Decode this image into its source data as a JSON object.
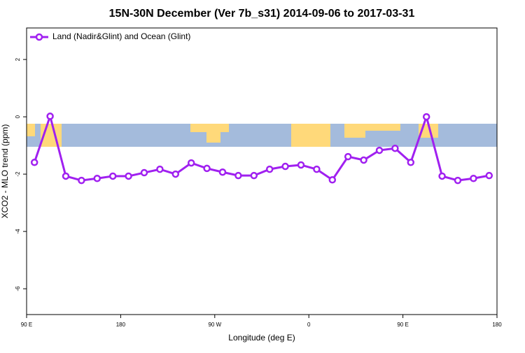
{
  "chart_data": {
    "type": "line",
    "title": "15N-30N December (Ver 7b_s31)   2014-09-06 to 2017-03-31",
    "x_label": "Longitude (deg E)",
    "y_label": "XCO2 - MLO trend (ppm)",
    "x": [
      97.5,
      112.5,
      127.5,
      142.5,
      157.5,
      172.5,
      187.5,
      202.5,
      217.5,
      232.5,
      247.5,
      262.5,
      277.5,
      292.5,
      307.5,
      322.5,
      337.5,
      352.5,
      367.5,
      382.5,
      397.5,
      412.5,
      427.5,
      442.5,
      457.5,
      472.5,
      487.5,
      502.5,
      517.5,
      532.5
    ],
    "series": [
      {
        "name": "Land (Nadir&Glint) and Ocean (Glint)",
        "color": "#a020f0",
        "values": [
          -1.59,
          0.02,
          -2.07,
          -2.22,
          -2.15,
          -2.07,
          -2.07,
          -1.95,
          -1.83,
          -2.0,
          -1.61,
          -1.8,
          -1.93,
          -2.05,
          -2.05,
          -1.83,
          -1.73,
          -1.68,
          -1.83,
          -2.2,
          -1.39,
          -1.51,
          -1.17,
          -1.1,
          -1.59,
          0.0,
          -2.07,
          -2.22,
          -2.15,
          -2.05
        ]
      }
    ],
    "xlim": [
      90,
      540
    ],
    "xticks": [
      {
        "value": 90,
        "label": "90 E"
      },
      {
        "value": 180,
        "label": "180"
      },
      {
        "value": 270,
        "label": "90 W"
      },
      {
        "value": 360,
        "label": "0"
      },
      {
        "value": 450,
        "label": "90 E"
      },
      {
        "value": 540,
        "label": "180"
      }
    ],
    "ylim": [
      -6.9,
      3.1
    ],
    "yticks": [
      -6,
      -4,
      -2,
      0,
      2
    ],
    "legend": "top-left"
  }
}
